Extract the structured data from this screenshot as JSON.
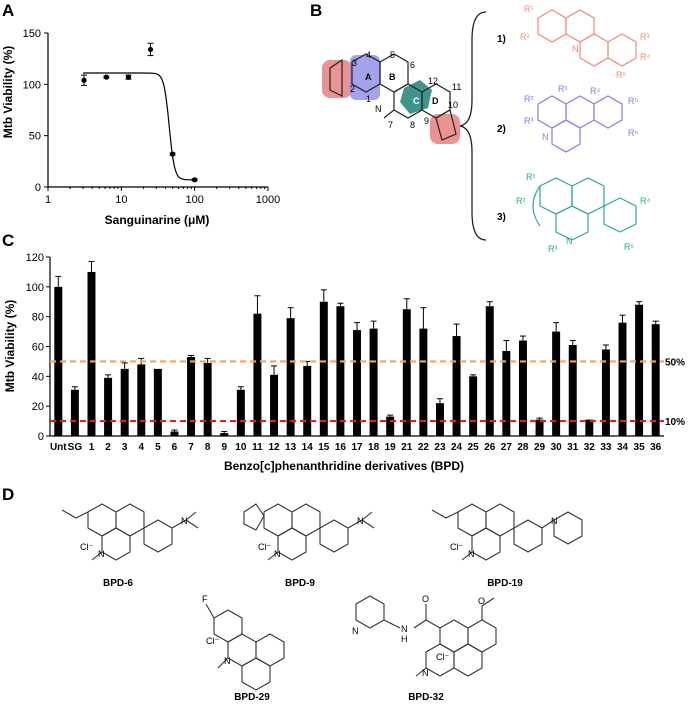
{
  "panels": {
    "a": "A",
    "b": "B",
    "c": "C",
    "d": "D"
  },
  "chart_data": [
    {
      "type": "scatter",
      "xlabel": "Sanguinarine (μM)",
      "ylabel": "Mtb Viability (%)",
      "xscale": "log",
      "xlim": [
        1,
        1000
      ],
      "ylim": [
        0,
        150
      ],
      "xticks": [
        "1",
        "10",
        "100",
        "1000"
      ],
      "yticks": [
        "0",
        "50",
        "100",
        "150"
      ],
      "points": [
        {
          "x": 3.1,
          "y": 104,
          "err": 5
        },
        {
          "x": 6.25,
          "y": 107,
          "err": 1
        },
        {
          "x": 12.5,
          "y": 107,
          "err": 2
        },
        {
          "x": 25,
          "y": 134,
          "err": 6
        },
        {
          "x": 50,
          "y": 32,
          "err": 1
        },
        {
          "x": 100,
          "y": 7,
          "err": 1
        }
      ],
      "fit": {
        "top": 111,
        "bottom": 7,
        "ic50": 45,
        "hill": -12
      }
    },
    {
      "type": "bar",
      "xlabel": "Benzo[c]phenanthridine derivatives (BPD)",
      "ylabel": "Mtb Viability (%)",
      "ylim": [
        0,
        120
      ],
      "yticks": [
        "0",
        "20",
        "40",
        "60",
        "80",
        "100",
        "120"
      ],
      "categories": [
        "Unt",
        "SG",
        "1",
        "2",
        "3",
        "4",
        "5",
        "6",
        "7",
        "8",
        "9",
        "10",
        "11",
        "12",
        "13",
        "14",
        "15",
        "16",
        "17",
        "18",
        "19",
        "21",
        "22",
        "23",
        "24",
        "25",
        "26",
        "27",
        "28",
        "29",
        "30",
        "31",
        "32",
        "33",
        "34",
        "35",
        "36"
      ],
      "values": [
        100,
        31,
        110,
        39,
        45,
        48,
        45,
        3,
        53,
        49,
        2,
        31,
        82,
        41,
        79,
        47,
        90,
        87,
        71,
        72,
        13,
        85,
        72,
        22,
        67,
        40,
        87,
        57,
        64,
        11,
        70,
        61,
        11,
        58,
        76,
        88,
        75
      ],
      "errors": [
        7,
        2,
        7,
        2,
        4,
        4,
        0,
        1,
        1,
        3,
        1,
        2,
        12,
        6,
        7,
        3,
        8,
        2,
        5,
        5,
        1,
        7,
        14,
        3,
        8,
        1,
        3,
        7,
        3,
        1,
        6,
        3,
        0,
        3,
        5,
        2,
        2
      ],
      "reference_lines": [
        {
          "y": 50,
          "label": "50%",
          "color": "#f4a460"
        },
        {
          "y": 10,
          "label": "10%",
          "color": "#e0201a"
        }
      ]
    }
  ],
  "scaffold": {
    "ring_labels": {
      "a": "A",
      "b": "B",
      "c": "C",
      "d": "D"
    },
    "atom_numbers": [
      "1",
      "2",
      "3",
      "4",
      "5",
      "6",
      "7",
      "8",
      "9",
      "10",
      "11",
      "12"
    ],
    "options": [
      "1)",
      "2)",
      "3)"
    ],
    "n_label": "N",
    "r_labels_1": [
      "R¹",
      "R²",
      "R³",
      "R⁴",
      "R⁵"
    ],
    "r_labels_2": [
      "R¹",
      "R²",
      "R³",
      "R⁴",
      "R⁵",
      "R⁶"
    ],
    "r_labels_3": [
      "R¹",
      "R²",
      "R³",
      "R⁴",
      "R⁵"
    ],
    "colors": {
      "ring_a": "#8b8be8",
      "ring_c": "#2a8a7e",
      "dioxole": "#e88080",
      "option1": "#f08a80",
      "option2": "#8080e0",
      "option3": "#2aa79b"
    }
  },
  "compounds": [
    {
      "name": "BPD-6",
      "counterion": "Cl⁻",
      "n_label": "N"
    },
    {
      "name": "BPD-9",
      "counterion": "Cl⁻",
      "n_label": "N"
    },
    {
      "name": "BPD-19",
      "counterion": "Cl⁻",
      "n_label": "N"
    },
    {
      "name": "BPD-29",
      "counterion": "Cl⁻",
      "n_label": "N",
      "f_label": "F"
    },
    {
      "name": "BPD-32",
      "counterion": "Cl⁻",
      "n_label": "N",
      "o_label": "O",
      "h_label": "H"
    }
  ]
}
